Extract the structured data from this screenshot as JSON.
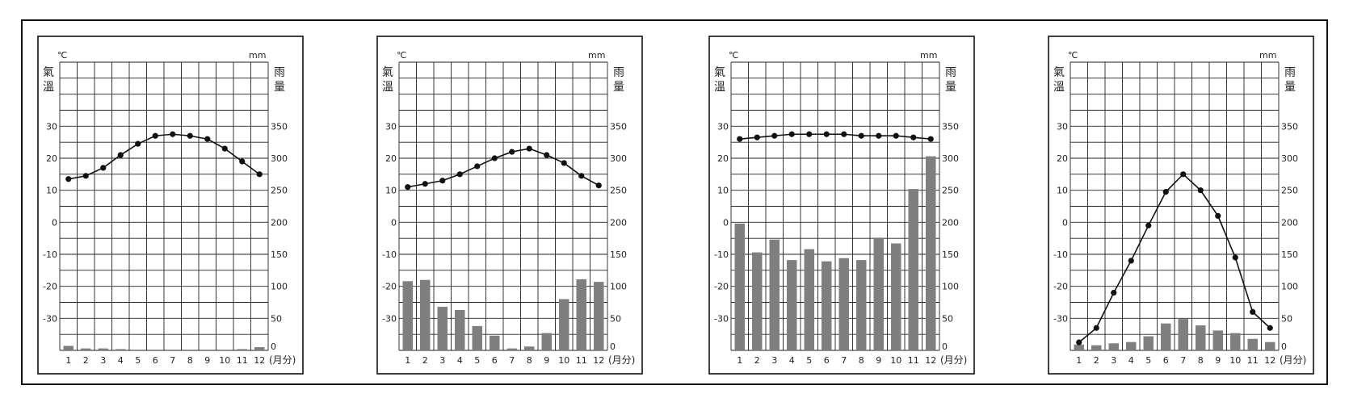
{
  "chart_data": [
    {
      "type": "bar-line",
      "temp_unit": "℃",
      "precip_unit": "mm",
      "left_axis_label": "氣溫",
      "right_axis_label": "雨量",
      "x_unit": "(月分)",
      "categories": [
        "1",
        "2",
        "3",
        "4",
        "5",
        "6",
        "7",
        "8",
        "9",
        "10",
        "11",
        "12"
      ],
      "temp_ticks": [
        "30",
        "20",
        "10",
        "0",
        "-10",
        "-20",
        "-30"
      ],
      "precip_ticks": [
        "350",
        "300",
        "250",
        "200",
        "150",
        "100",
        "50",
        "0"
      ],
      "ylim_temp": [
        -40,
        50
      ],
      "ylim_precip": [
        0,
        450
      ],
      "grid": true,
      "temperature": [
        13.5,
        14.5,
        17,
        21,
        24.5,
        27,
        27.5,
        27,
        26,
        23,
        19,
        15
      ],
      "precipitation": [
        7,
        3,
        3,
        2,
        0,
        0,
        0,
        0,
        0,
        1,
        2,
        5
      ]
    },
    {
      "type": "bar-line",
      "temp_unit": "℃",
      "precip_unit": "mm",
      "left_axis_label": "氣溫",
      "right_axis_label": "雨量",
      "x_unit": "(月分)",
      "categories": [
        "1",
        "2",
        "3",
        "4",
        "5",
        "6",
        "7",
        "8",
        "9",
        "10",
        "11",
        "12"
      ],
      "temp_ticks": [
        "30",
        "20",
        "10",
        "0",
        "-10",
        "-20",
        "-30"
      ],
      "precip_ticks": [
        "350",
        "300",
        "250",
        "200",
        "150",
        "100",
        "50",
        "0"
      ],
      "ylim_temp": [
        -40,
        50
      ],
      "ylim_precip": [
        0,
        450
      ],
      "grid": true,
      "temperature": [
        11,
        12,
        13,
        15,
        17.5,
        20,
        22,
        23,
        21,
        18.5,
        14.5,
        11.5
      ],
      "precipitation": [
        108,
        110,
        68,
        63,
        38,
        23,
        3,
        6,
        27,
        80,
        111,
        107
      ]
    },
    {
      "type": "bar-line",
      "temp_unit": "℃",
      "precip_unit": "mm",
      "left_axis_label": "氣溫",
      "right_axis_label": "雨量",
      "x_unit": "(月分)",
      "categories": [
        "1",
        "2",
        "3",
        "4",
        "5",
        "6",
        "7",
        "8",
        "9",
        "10",
        "11",
        "12"
      ],
      "temp_ticks": [
        "30",
        "20",
        "10",
        "0",
        "-10",
        "-20",
        "-30"
      ],
      "precip_ticks": [
        "350",
        "300",
        "250",
        "200",
        "150",
        "100",
        "50",
        "0"
      ],
      "ylim_temp": [
        -40,
        50
      ],
      "ylim_precip": [
        0,
        450
      ],
      "grid": true,
      "temperature": [
        26,
        26.5,
        27,
        27.5,
        27.5,
        27.5,
        27.5,
        27,
        27,
        27,
        26.5,
        26
      ],
      "precipitation": [
        198,
        153,
        173,
        141,
        158,
        139,
        144,
        141,
        176,
        167,
        252,
        303
      ]
    },
    {
      "type": "bar-line",
      "temp_unit": "℃",
      "precip_unit": "mm",
      "left_axis_label": "氣溫",
      "right_axis_label": "雨量",
      "x_unit": "(月分)",
      "categories": [
        "1",
        "2",
        "3",
        "4",
        "5",
        "6",
        "7",
        "8",
        "9",
        "10",
        "11",
        "12"
      ],
      "temp_ticks": [
        "30",
        "20",
        "10",
        "0",
        "-10",
        "-20",
        "-30"
      ],
      "precip_ticks": [
        "350",
        "300",
        "250",
        "200",
        "150",
        "100",
        "50",
        "0"
      ],
      "ylim_temp": [
        -40,
        50
      ],
      "ylim_precip": [
        0,
        450
      ],
      "grid": true,
      "temperature": [
        -37.5,
        -33,
        -22,
        -12,
        -1,
        9.5,
        15,
        10,
        2,
        -11,
        -28,
        -33
      ],
      "precipitation": [
        9,
        8,
        11,
        13,
        22,
        42,
        49,
        39,
        31,
        27,
        18,
        13
      ]
    }
  ]
}
